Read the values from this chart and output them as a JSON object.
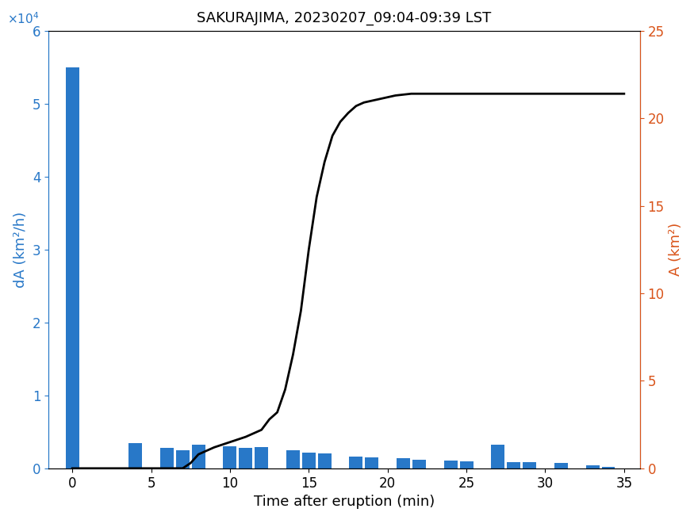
{
  "title": "SAKURAJIMA, 20230207_09:04-09:39 LST",
  "xlabel": "Time after eruption (min)",
  "ylabel_left": "dA (km²/h)",
  "ylabel_right": "A (km²)",
  "bar_color": "#2878c8",
  "line_color": "#000000",
  "right_axis_color": "#d95319",
  "left_axis_color": "#2878c8",
  "bar_positions": [
    0,
    1,
    2,
    3,
    4,
    5,
    6,
    7,
    8,
    9,
    10,
    11,
    12,
    13,
    14,
    15,
    16,
    17,
    18,
    19,
    20,
    21,
    22,
    23,
    24,
    25,
    26,
    27,
    28,
    29,
    30,
    31,
    32,
    33,
    34
  ],
  "bar_values": [
    55000,
    0,
    0,
    0,
    3500,
    0,
    2800,
    2500,
    3200,
    0,
    3000,
    2800,
    2900,
    0,
    2500,
    2200,
    2000,
    0,
    1600,
    1500,
    0,
    1400,
    1200,
    0,
    1100,
    1000,
    0,
    3200,
    800,
    900,
    0,
    700,
    0,
    400,
    200
  ],
  "line_x": [
    0,
    1,
    2,
    3,
    4,
    5,
    6,
    7,
    7.5,
    8,
    8.5,
    9,
    10,
    11,
    12,
    12.5,
    13,
    13.5,
    14,
    14.5,
    15,
    15.5,
    16,
    16.5,
    17,
    17.5,
    18,
    18.5,
    19,
    19.5,
    20,
    20.5,
    21,
    21.5,
    22,
    23,
    24,
    25,
    26,
    27,
    28,
    29,
    30,
    31,
    32,
    33,
    34,
    35
  ],
  "line_y": [
    0,
    0,
    0,
    0,
    0,
    0,
    0,
    0,
    0.3,
    0.8,
    1.0,
    1.2,
    1.5,
    1.8,
    2.2,
    2.8,
    3.2,
    4.5,
    6.5,
    9.0,
    12.5,
    15.5,
    17.5,
    19.0,
    19.8,
    20.3,
    20.7,
    20.9,
    21.0,
    21.1,
    21.2,
    21.3,
    21.35,
    21.4,
    21.4,
    21.4,
    21.4,
    21.4,
    21.4,
    21.4,
    21.4,
    21.4,
    21.4,
    21.4,
    21.4,
    21.4,
    21.4,
    21.4
  ],
  "xlim": [
    -1.5,
    36
  ],
  "ylim_left": [
    0,
    60000
  ],
  "ylim_right": [
    0,
    25
  ],
  "xticks": [
    0,
    5,
    10,
    15,
    20,
    25,
    30,
    35
  ],
  "yticks_left": [
    0,
    10000,
    20000,
    30000,
    40000,
    50000,
    60000
  ],
  "yticks_right": [
    0,
    5,
    10,
    15,
    20,
    25
  ],
  "bar_width": 0.85,
  "figsize": [
    8.75,
    6.56
  ],
  "dpi": 100
}
